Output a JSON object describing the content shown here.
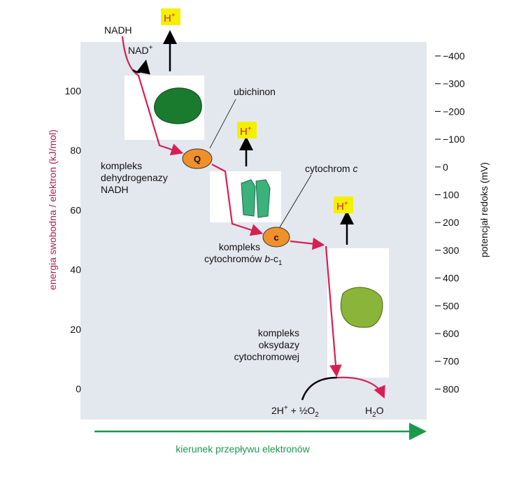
{
  "left_axis": {
    "label": "energia swobodna / elektron (kJ/mol)",
    "ticks": [
      0,
      20,
      40,
      60,
      80,
      100
    ]
  },
  "right_axis": {
    "label": "potencjał redoks (mV)",
    "ticks": [
      "−400",
      "−300",
      "−200",
      "−100",
      "0",
      "100",
      "200",
      "300",
      "400",
      "500",
      "600",
      "700",
      "800"
    ]
  },
  "labels": {
    "nadh": "NADH",
    "nad": {
      "base": "NAD",
      "sup": "+"
    },
    "protons": [
      {
        "base": "H",
        "sup": "+"
      },
      {
        "base": "H",
        "sup": "+"
      },
      {
        "base": "H",
        "sup": "+"
      }
    ],
    "ubichinon": "ubichinon",
    "q": "Q",
    "cytochrom_c": {
      "base": "cytochrom ",
      "italic": "c"
    },
    "c": "c",
    "complex1": [
      "kompleks",
      "dehydrogenazy",
      "NADH"
    ],
    "complex2": {
      "line1": "kompleks",
      "base": "cytochromów ",
      "italic": "b",
      "mid": "-c",
      "sub": "1"
    },
    "complex3": [
      "kompleks",
      "oksydazy",
      "cytochromowej"
    ],
    "reactant": {
      "a": "2H",
      "sup": "+",
      "b": " + ½O",
      "sub": "2"
    },
    "product": {
      "a": "H",
      "sub": "2",
      "b": "O"
    },
    "direction": "kierunek przepływu elektronów"
  }
}
